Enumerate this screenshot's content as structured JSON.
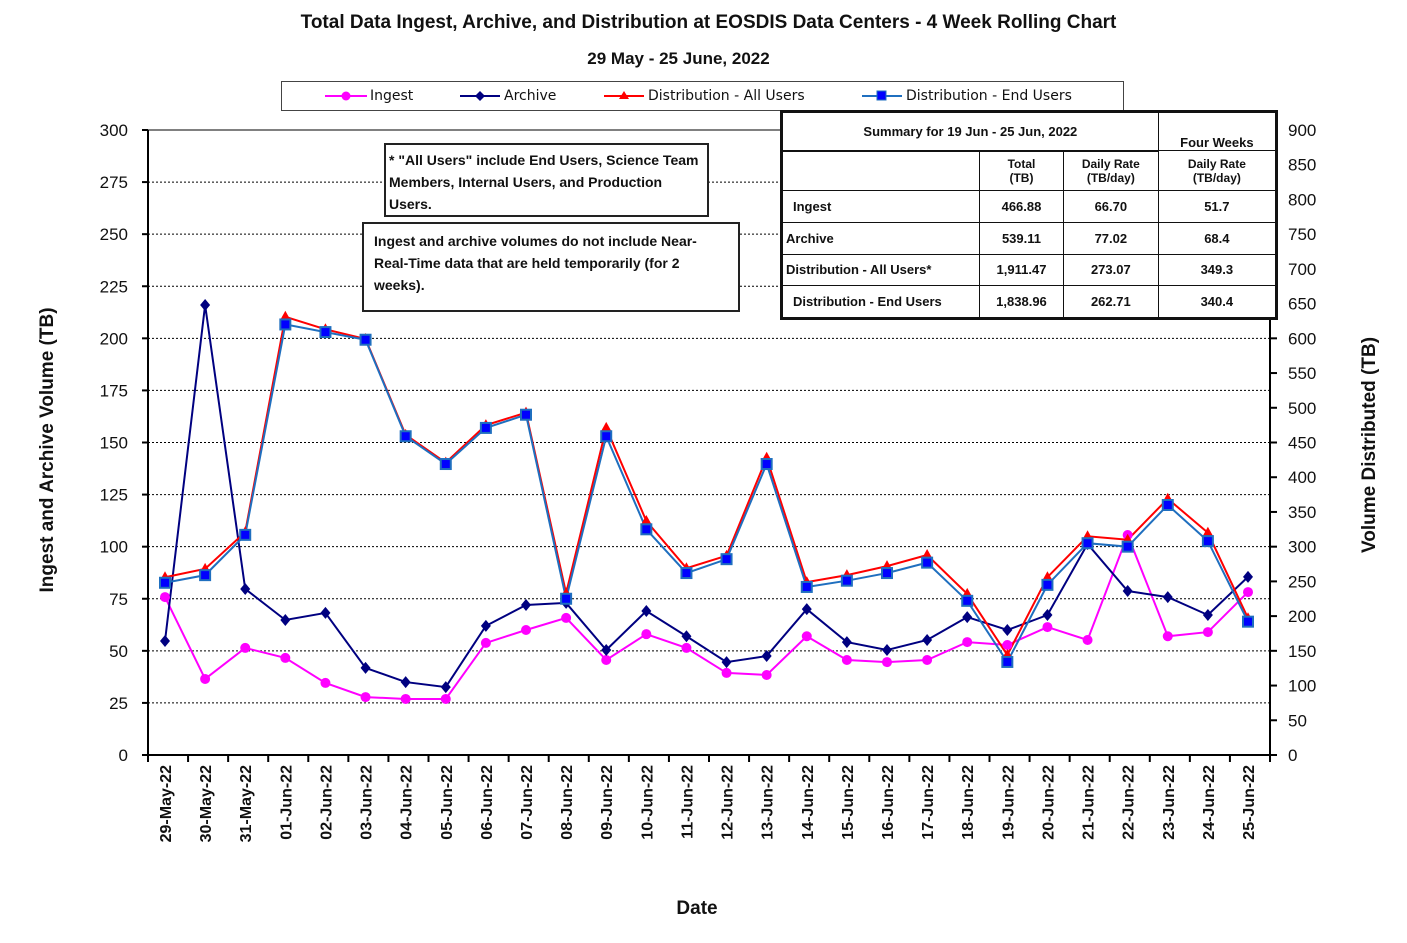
{
  "chart_data": {
    "type": "line",
    "title": "Total Data Ingest, Archive, and  Distribution at EOSDIS Data Centers - 4 Week Rolling Chart",
    "subtitle": "29  May   -  25  June,  2022",
    "xlabel": "Date",
    "ylabel_left": "Ingest and Archive Volume (TB)",
    "ylabel_right": "Volume Distributed (TB)",
    "ylim_left": [
      0,
      300
    ],
    "ylim_right": [
      0,
      900
    ],
    "yticks_left": [
      0,
      25,
      50,
      75,
      100,
      125,
      150,
      175,
      200,
      225,
      250,
      275,
      300
    ],
    "yticks_right": [
      0,
      50,
      100,
      150,
      200,
      250,
      300,
      350,
      400,
      450,
      500,
      550,
      600,
      650,
      700,
      750,
      800,
      850,
      900
    ],
    "grid": "horizontal dotted",
    "legend_position": "top",
    "categories": [
      "29-May-22",
      "30-May-22",
      "31-May-22",
      "01-Jun-22",
      "02-Jun-22",
      "03-Jun-22",
      "04-Jun-22",
      "05-Jun-22",
      "06-Jun-22",
      "07-Jun-22",
      "08-Jun-22",
      "09-Jun-22",
      "10-Jun-22",
      "11-Jun-22",
      "12-Jun-22",
      "13-Jun-22",
      "14-Jun-22",
      "15-Jun-22",
      "16-Jun-22",
      "17-Jun-22",
      "18-Jun-22",
      "19-Jun-22",
      "20-Jun-22",
      "21-Jun-22",
      "22-Jun-22",
      "23-Jun-22",
      "24-Jun-22",
      "25-Jun-22"
    ],
    "series": [
      {
        "name": "Ingest",
        "axis": "left",
        "color": "#ff00ff",
        "marker": "circle",
        "values": [
          75.8,
          36.5,
          51.4,
          46.6,
          34.6,
          27.8,
          26.9,
          26.9,
          53.8,
          60.0,
          65.8,
          45.6,
          58.0,
          51.4,
          39.4,
          38.4,
          57.0,
          45.6,
          44.6,
          45.6,
          54.2,
          52.8,
          61.4,
          55.2,
          105.6,
          57.0,
          59.0,
          78.2
        ]
      },
      {
        "name": "Archive",
        "axis": "left",
        "color": "#000080",
        "marker": "diamond",
        "values": [
          54.7,
          216.0,
          79.7,
          64.8,
          68.2,
          41.8,
          35.0,
          32.6,
          62.0,
          72.0,
          73.0,
          50.4,
          69.1,
          57.0,
          44.6,
          47.5,
          70.0,
          54.2,
          50.4,
          55.2,
          66.2,
          60.0,
          67.2,
          101.3,
          78.7,
          75.8,
          67.2,
          85.5
        ]
      },
      {
        "name": "Distribution - All Users",
        "axis": "right",
        "color": "#ff0000",
        "marker": "triangle",
        "values": [
          256,
          268,
          321,
          631,
          613,
          599,
          461,
          421,
          475,
          493,
          233,
          471,
          337,
          269,
          287,
          428,
          249,
          259,
          272,
          288,
          232,
          144,
          256,
          315,
          310,
          369,
          320,
          197
        ]
      },
      {
        "name": "Distribution - End Users",
        "axis": "right",
        "color": "#0000ff",
        "line_color": "#1f6fbf",
        "marker": "square",
        "values": [
          248,
          259,
          317,
          620,
          609,
          598,
          459,
          419,
          471,
          490,
          225,
          459,
          325,
          262,
          282,
          419,
          242,
          251,
          262,
          277,
          222,
          134,
          245,
          305,
          300,
          360,
          308,
          192
        ]
      }
    ],
    "annotations": [
      "* \"All Users\" include End Users, Science Team Members,  Internal Users, and Production Users.",
      "Ingest and archive volumes do not include Near-Real-Time data that are held temporarily (for 2 weeks)."
    ]
  },
  "summary": {
    "title": "Summary  for  19  Jun   -  25  Jun,  2022",
    "four_weeks": "Four Weeks",
    "headers": [
      "Total\n(TB)",
      "Daily Rate\n(TB/day)",
      "Daily Rate\n(TB/day)"
    ],
    "rows": [
      {
        "label": "Ingest",
        "total": "466.88",
        "daily": "66.70",
        "four_week": "51.7"
      },
      {
        "label": "Archive",
        "total": "539.11",
        "daily": "77.02",
        "four_week": "68.4"
      },
      {
        "label": "Distribution - All Users*",
        "total": "1,911.47",
        "daily": "273.07",
        "four_week": "349.3"
      },
      {
        "label": "Distribution - End Users",
        "total": "1,838.96",
        "daily": "262.71",
        "four_week": "340.4"
      }
    ]
  }
}
